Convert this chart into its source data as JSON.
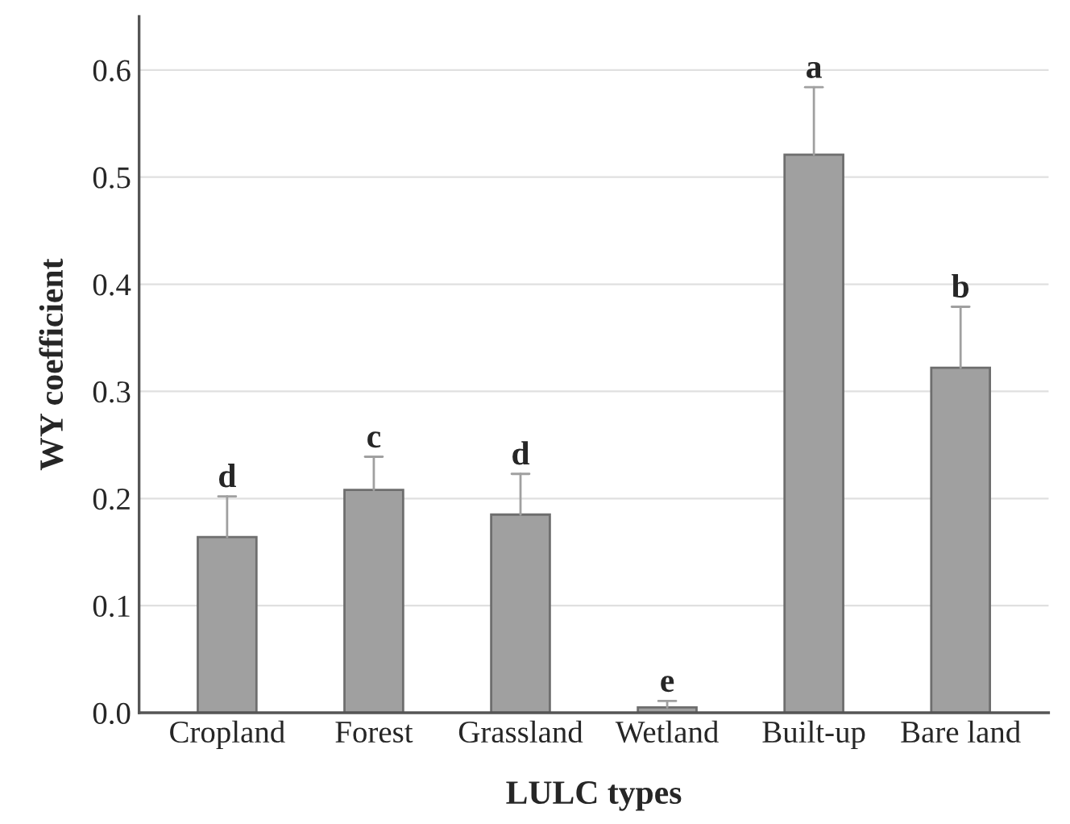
{
  "chart_data": {
    "type": "bar",
    "xlabel": "LULC types",
    "ylabel": "WY coefficient",
    "categories": [
      "Cropland",
      "Forest",
      "Grassland",
      "Wetland",
      "Built-up",
      "Bare land"
    ],
    "values": [
      0.164,
      0.208,
      0.185,
      0.005,
      0.521,
      0.322
    ],
    "errors": [
      [
        0.164,
        0.202
      ],
      [
        0.208,
        0.239
      ],
      [
        0.185,
        0.223
      ],
      [
        0.005,
        0.011
      ],
      [
        0.521,
        0.584
      ],
      [
        0.322,
        0.379
      ]
    ],
    "color": "#a0a0a0",
    "ylim": [
      0,
      0.65
    ],
    "yticks": [
      {
        "value": 0,
        "label": "0.0"
      },
      0.1,
      0.2,
      0.3,
      0.4,
      0.5,
      0.6
    ],
    "grid": "y",
    "annotations": [
      {
        "text": "d",
        "x": "Cropland",
        "y": 0.202
      },
      {
        "text": "c",
        "x": "Forest",
        "y": 0.239
      },
      {
        "text": "d",
        "x": "Grassland",
        "y": 0.223
      },
      {
        "text": "e",
        "x": "Wetland",
        "y": 0.011
      },
      {
        "text": "a",
        "x": "Built-up",
        "y": 0.584
      },
      {
        "text": "b",
        "x": "Bare land",
        "y": 0.379
      }
    ]
  }
}
